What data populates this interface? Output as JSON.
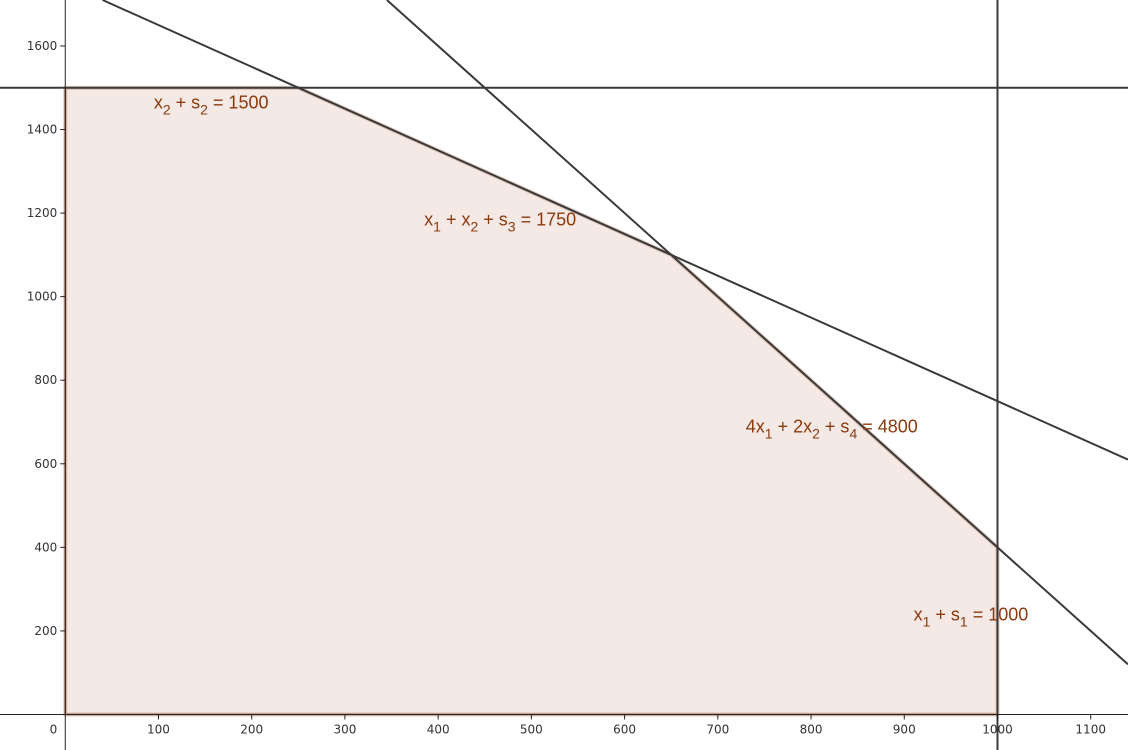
{
  "chart_data": {
    "type": "line",
    "xlim": [
      -70,
      1140
    ],
    "ylim": [
      -85,
      1710
    ],
    "x_ticks": [
      0,
      100,
      200,
      300,
      400,
      500,
      600,
      700,
      800,
      900,
      1000,
      1100
    ],
    "x_tick_labels": [
      "0",
      "100",
      "200",
      "300",
      "400",
      "500",
      "600",
      "700",
      "800",
      "900",
      "1000",
      "1100"
    ],
    "y_ticks": [
      200,
      400,
      600,
      800,
      1000,
      1200,
      1400,
      1600
    ],
    "y_tick_labels": [
      "200",
      "400",
      "600",
      "800",
      "1000",
      "1200",
      "1400",
      "1600"
    ],
    "grid": false,
    "series": [
      {
        "line": "x2 = 1500",
        "points": [
          [
            -70,
            1500
          ],
          [
            1140,
            1500
          ]
        ]
      },
      {
        "line": "x1 = 1000",
        "points": [
          [
            1000,
            -85
          ],
          [
            1000,
            1710
          ]
        ]
      },
      {
        "line": "x1 + x2 = 1750",
        "points": [
          [
            40,
            1710
          ],
          [
            1140,
            610
          ]
        ]
      },
      {
        "line": "4x1 + 2x2 = 4800",
        "points": [
          [
            345,
            1710
          ],
          [
            1140,
            120
          ]
        ]
      }
    ],
    "feasible_region": [
      [
        0,
        0
      ],
      [
        0,
        1500
      ],
      [
        250,
        1500
      ],
      [
        650,
        1100
      ],
      [
        1000,
        400
      ],
      [
        1000,
        0
      ]
    ],
    "constraint_labels": [
      {
        "segments": [
          [
            "x",
            "2",
            " + s",
            "2",
            " = 1500"
          ]
        ]
      },
      {
        "segments": [
          [
            "x",
            "1",
            " + x",
            "2",
            " + s",
            "3",
            " = 1750"
          ]
        ]
      },
      {
        "segments": [
          [
            "4x",
            "1",
            " + 2x",
            "2",
            " + s",
            "4",
            " = 4800"
          ]
        ]
      },
      {
        "segments": [
          [
            "x",
            "1",
            " + s",
            "1",
            " = 1000"
          ]
        ]
      }
    ],
    "colors": {
      "lines": "#3a3a3a",
      "region_fill": "#f4e9e4",
      "region_edge": "#8b3a0e",
      "label": "#8b3a0e"
    }
  }
}
